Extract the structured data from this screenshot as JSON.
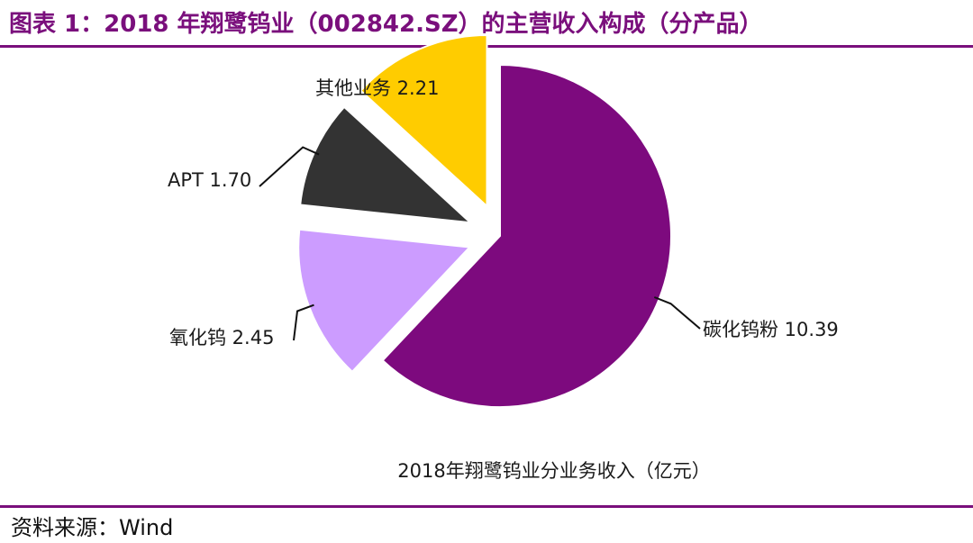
{
  "header": {
    "title": "图表 1：2018 年翔鹭钨业（002842.SZ）的主营收入构成（分产品）"
  },
  "footer": {
    "source": "资料来源：Wind"
  },
  "chart_data": {
    "type": "pie",
    "title": "图表 1：2018 年翔鹭钨业（002842.SZ）的主营收入构成（分产品）",
    "caption": "2018年翔鹭钨业分业务收入（亿元）",
    "unit": "亿元",
    "slices": [
      {
        "name": "碳化钨粉",
        "value": 10.39,
        "label": "碳化钨粉 10.39",
        "color": "#7d0a7e"
      },
      {
        "name": "氧化钨",
        "value": 2.45,
        "label": "氧化钨 2.45",
        "color": "#cc9cff"
      },
      {
        "name": "APT",
        "value": 1.7,
        "label": "APT 1.70",
        "color": "#333333"
      },
      {
        "name": "其他业务",
        "value": 2.21,
        "label": "其他业务 2.21",
        "color": "#ffcc00"
      }
    ]
  }
}
